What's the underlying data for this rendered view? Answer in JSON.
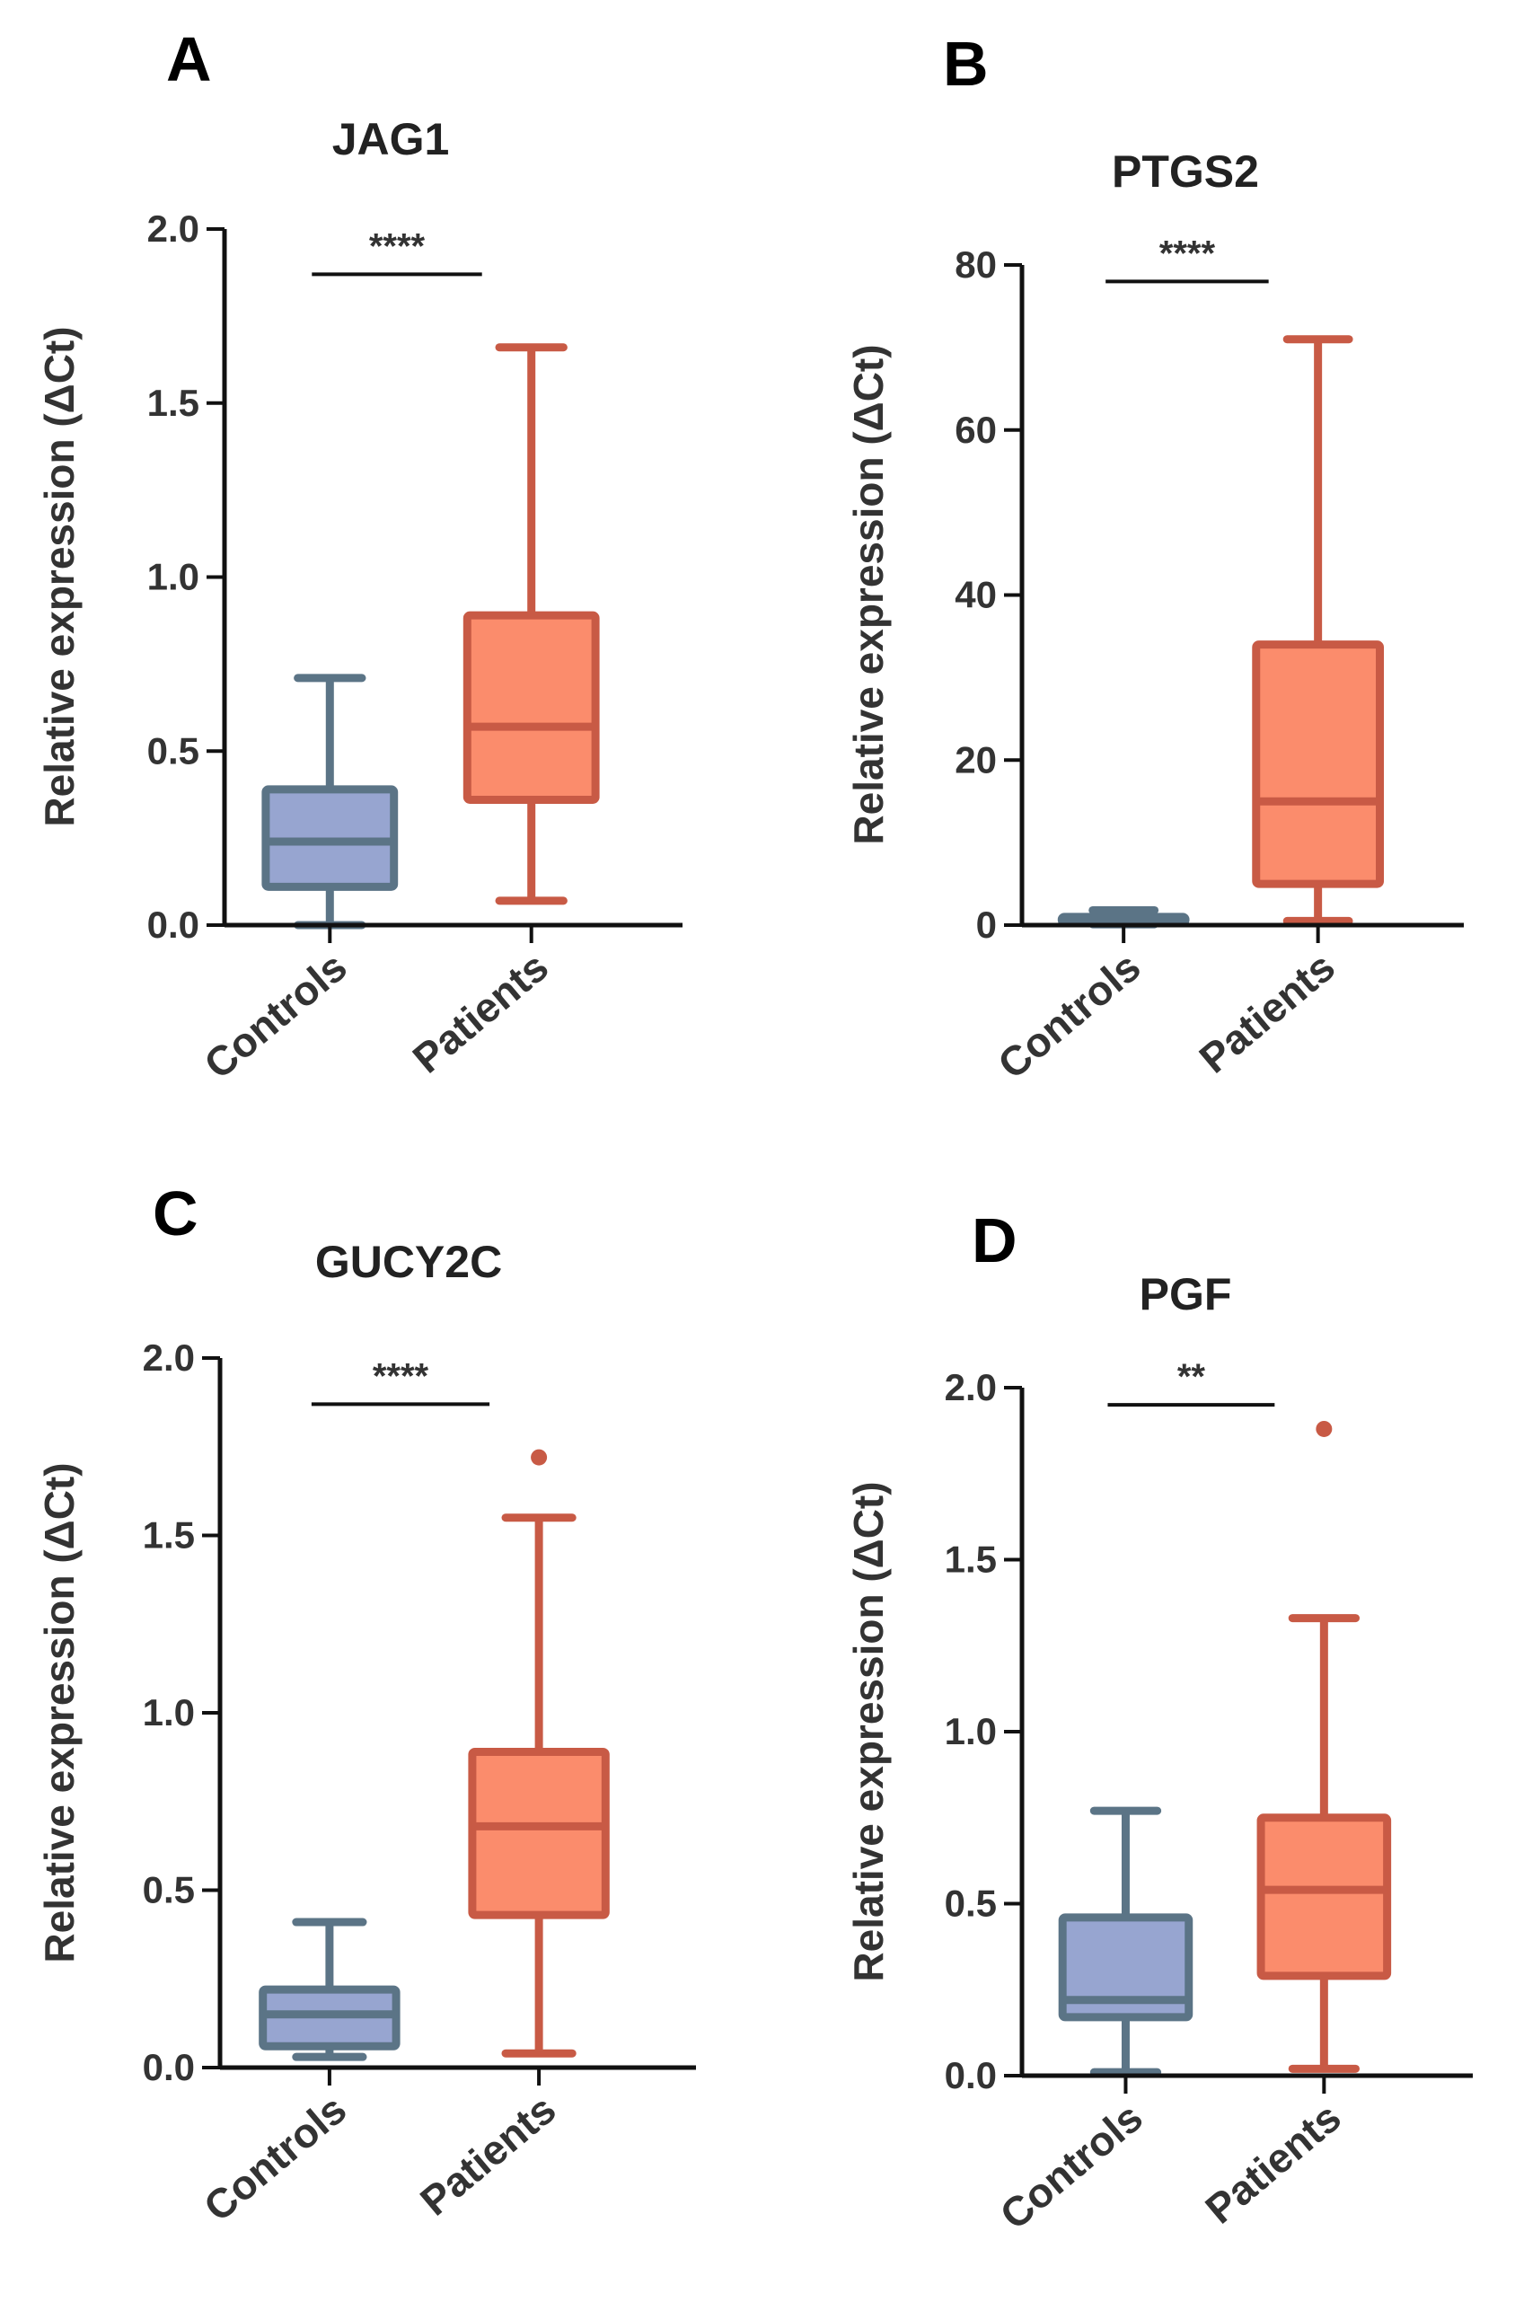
{
  "colors": {
    "controls_fill": "#97a5d0",
    "controls_stroke": "#5b7486",
    "patients_fill": "#fb8c6c",
    "patients_stroke": "#c85a45",
    "axis": "#111111",
    "background": "#ffffff"
  },
  "chart_data": [
    {
      "panel": "A",
      "type": "box",
      "title": "JAG1",
      "ylabel": "Relative expression (ΔCt)",
      "categories": [
        "Controls",
        "Patients"
      ],
      "ylim": [
        0,
        2.0
      ],
      "yticks": [
        0.0,
        0.5,
        1.0,
        1.5,
        2.0
      ],
      "ytick_labels": [
        "0.0",
        "0.5",
        "1.0",
        "1.5",
        "2.0"
      ],
      "boxes": [
        {
          "min": 0.0,
          "q1": 0.11,
          "median": 0.24,
          "q3": 0.39,
          "max": 0.71,
          "outliers": []
        },
        {
          "min": 0.07,
          "q1": 0.36,
          "median": 0.57,
          "q3": 0.89,
          "max": 1.66,
          "outliers": []
        }
      ],
      "significance": "****",
      "sig_y": 1.87
    },
    {
      "panel": "B",
      "type": "box",
      "title": "PTGS2",
      "ylabel": "Relative expression (ΔCt)",
      "categories": [
        "Controls",
        "Patients"
      ],
      "ylim": [
        0,
        80
      ],
      "yticks": [
        0,
        20,
        40,
        60,
        80
      ],
      "ytick_labels": [
        "0",
        "20",
        "40",
        "60",
        "80"
      ],
      "boxes": [
        {
          "min": 0.1,
          "q1": 0.3,
          "median": 0.6,
          "q3": 1.0,
          "max": 1.8,
          "outliers": []
        },
        {
          "min": 0.5,
          "q1": 5.0,
          "median": 15.0,
          "q3": 34.0,
          "max": 71.0,
          "outliers": []
        }
      ],
      "significance": "****",
      "sig_y": 78
    },
    {
      "panel": "C",
      "type": "box",
      "title": "GUCY2C",
      "ylabel": "Relative expression (ΔCt)",
      "categories": [
        "Controls",
        "Patients"
      ],
      "ylim": [
        0,
        2.0
      ],
      "yticks": [
        0.0,
        0.5,
        1.0,
        1.5,
        2.0
      ],
      "ytick_labels": [
        "0.0",
        "0.5",
        "1.0",
        "1.5",
        "2.0"
      ],
      "boxes": [
        {
          "min": 0.03,
          "q1": 0.06,
          "median": 0.15,
          "q3": 0.22,
          "max": 0.41,
          "outliers": []
        },
        {
          "min": 0.04,
          "q1": 0.43,
          "median": 0.68,
          "q3": 0.89,
          "max": 1.55,
          "outliers": [
            1.72
          ]
        }
      ],
      "significance": "****",
      "sig_y": 1.87
    },
    {
      "panel": "D",
      "type": "box",
      "title": "PGF",
      "ylabel": "Relative expression (ΔCt)",
      "categories": [
        "Controls",
        "Patients"
      ],
      "ylim": [
        0,
        2.0
      ],
      "yticks": [
        0.0,
        0.5,
        1.0,
        1.5,
        2.0
      ],
      "ytick_labels": [
        "0.0",
        "0.5",
        "1.0",
        "1.5",
        "2.0"
      ],
      "boxes": [
        {
          "min": 0.01,
          "q1": 0.17,
          "median": 0.22,
          "q3": 0.46,
          "max": 0.77,
          "outliers": []
        },
        {
          "min": 0.02,
          "q1": 0.29,
          "median": 0.54,
          "q3": 0.75,
          "max": 1.33,
          "outliers": [
            1.88
          ]
        }
      ],
      "significance": "**",
      "sig_y": 1.95
    }
  ]
}
